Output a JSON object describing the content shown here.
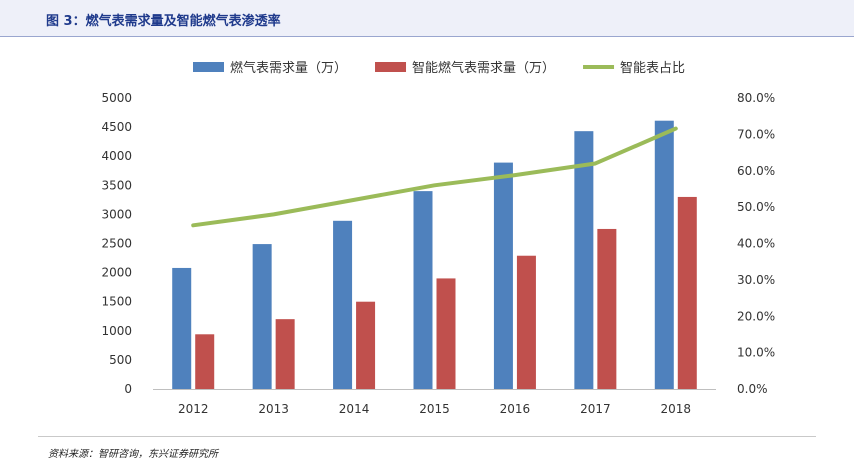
{
  "figure": {
    "title": "图 3：燃气表需求量及智能燃气表渗透率",
    "source": "资料来源：智研咨询，东兴证券研究所"
  },
  "chart_data": {
    "type": "bar",
    "categories": [
      "2012",
      "2013",
      "2014",
      "2015",
      "2016",
      "2017",
      "2018"
    ],
    "series": [
      {
        "name": "燃气表需求量（万）",
        "type": "bar",
        "axis": "left",
        "color": "#4f81bd",
        "values": [
          2080,
          2490,
          2890,
          3400,
          3890,
          4430,
          4610
        ]
      },
      {
        "name": "智能燃气表需求量（万）",
        "type": "bar",
        "axis": "left",
        "color": "#c0504d",
        "values": [
          940,
          1200,
          1500,
          1900,
          2290,
          2750,
          3300
        ]
      },
      {
        "name": "智能表占比",
        "type": "line",
        "axis": "right",
        "color": "#9bbb59",
        "values": [
          45.0,
          48.0,
          52.0,
          56.0,
          58.8,
          62.0,
          71.6
        ]
      }
    ],
    "yaxis_left": {
      "min": 0,
      "max": 5000,
      "step": 500,
      "tick_labels": [
        "0",
        "500",
        "1000",
        "1500",
        "2000",
        "2500",
        "3000",
        "3500",
        "4000",
        "4500",
        "5000"
      ]
    },
    "yaxis_right": {
      "min": 0,
      "max": 80,
      "step": 10,
      "tick_labels": [
        "0.0%",
        "10.0%",
        "20.0%",
        "30.0%",
        "40.0%",
        "50.0%",
        "60.0%",
        "70.0%",
        "80.0%"
      ]
    },
    "legend_position": "top",
    "grid": false
  }
}
